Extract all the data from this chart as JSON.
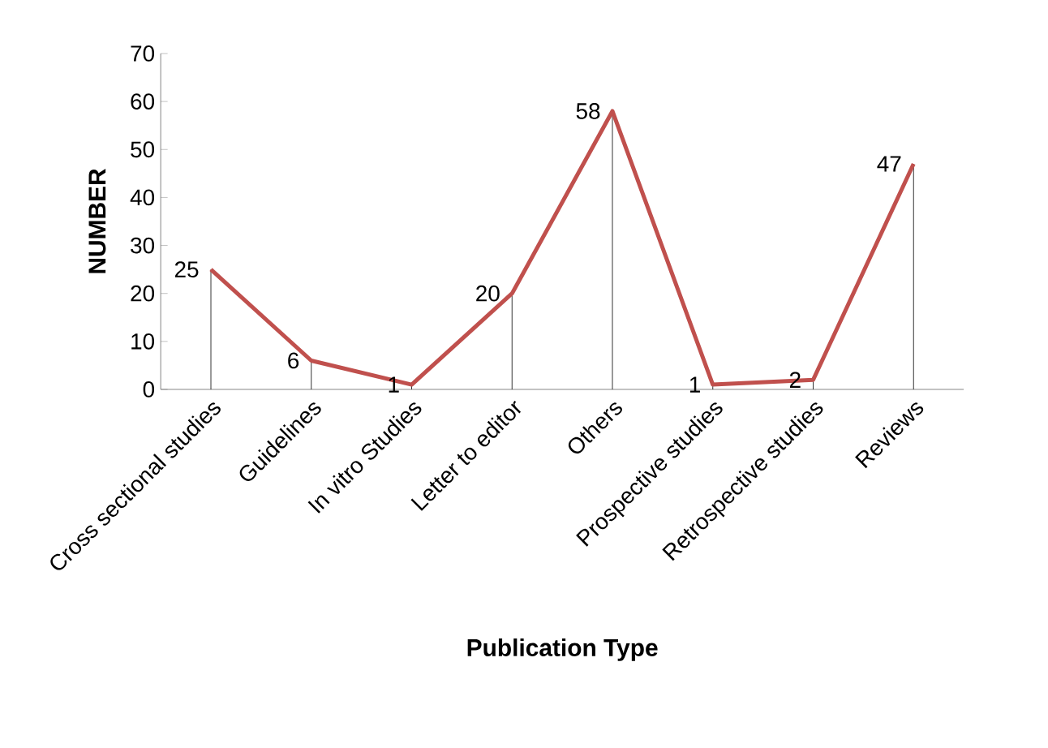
{
  "chart_data": {
    "type": "line",
    "xlabel": "Publication Type",
    "ylabel": "NUMBER",
    "categories": [
      "Cross sectional studies",
      "Guidelines",
      "In vitro Studies",
      "Letter to editor",
      "Others",
      "Prospective studies",
      "Retrospective studies",
      "Reviews"
    ],
    "values": [
      25,
      6,
      1,
      20,
      58,
      1,
      2,
      47
    ],
    "color": "#c0504d",
    "data_labels": true,
    "ylim": [
      0,
      70
    ],
    "yticks": [
      0,
      10,
      20,
      30,
      40,
      50,
      60,
      70
    ]
  }
}
